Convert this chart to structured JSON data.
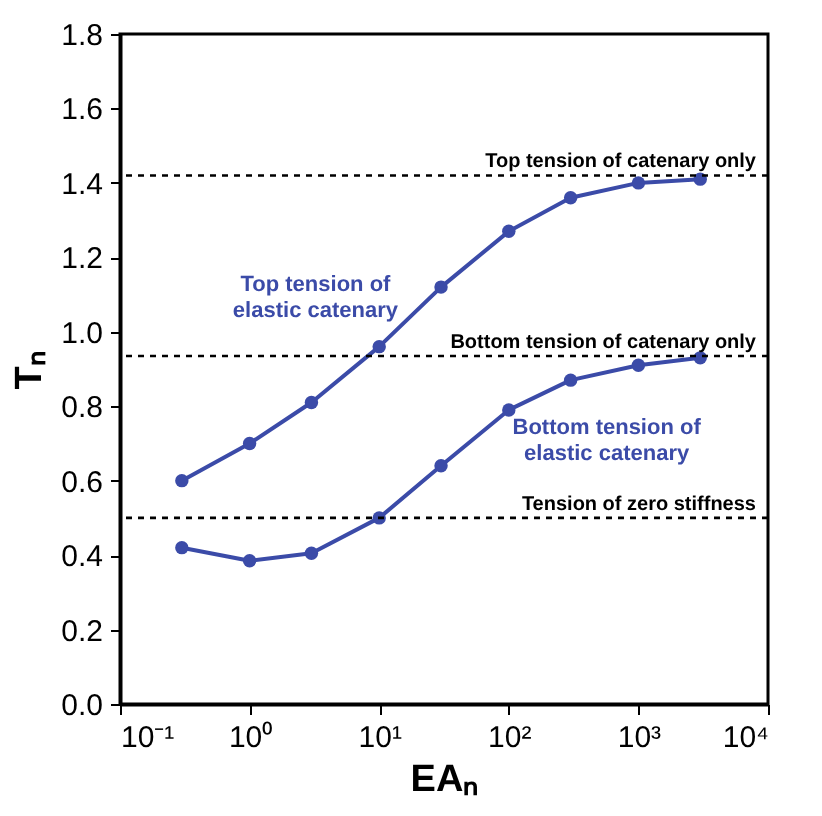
{
  "chart_data": {
    "type": "line",
    "xlabel": "EAₙ",
    "ylabel": "Tₙ",
    "log": "x",
    "marker": "circle",
    "line_style": "solid",
    "grid": false,
    "xlim": [
      0.1,
      10000
    ],
    "xticks": [
      {
        "value": 0.1,
        "label": "10⁻¹"
      },
      {
        "value": 1,
        "label": "10⁰"
      },
      {
        "value": 10,
        "label": "10¹"
      },
      {
        "value": 100,
        "label": "10²"
      },
      {
        "value": 1000,
        "label": "10³"
      },
      {
        "value": 10000,
        "label": "10⁴"
      }
    ],
    "ylim": [
      0,
      1.8
    ],
    "yticks": [
      {
        "value": 0,
        "label": "0.0"
      },
      0.2,
      0.4,
      0.6,
      0.8,
      {
        "value": 1,
        "label": "1.0"
      },
      1.2,
      1.4,
      1.6,
      1.8
    ],
    "x": [
      0.3,
      1,
      3,
      10,
      30,
      100,
      300,
      1000,
      3000
    ],
    "series": [
      {
        "name": "Top tension of elastic catenary",
        "color": "#3b4ba8",
        "values": [
          0.6,
          0.7,
          0.81,
          0.96,
          1.12,
          1.27,
          1.36,
          1.4,
          1.41
        ]
      },
      {
        "name": "Bottom tension of elastic catenary",
        "color": "#3b4ba8",
        "values": [
          0.42,
          0.385,
          0.405,
          0.5,
          0.64,
          0.79,
          0.87,
          0.91,
          0.93
        ]
      }
    ],
    "ref_lines": [
      {
        "axis": "y",
        "value": 1.42,
        "label": "Top tension of catenary only",
        "color": "#000000",
        "line_style": "dashed"
      },
      {
        "axis": "y",
        "value": 0.935,
        "label": "Bottom tension of catenary only",
        "color": "#000000",
        "line_style": "dashed"
      },
      {
        "axis": "y",
        "value": 0.5,
        "label": "Tension of zero stiffness",
        "color": "#000000",
        "line_style": "dashed"
      }
    ]
  }
}
